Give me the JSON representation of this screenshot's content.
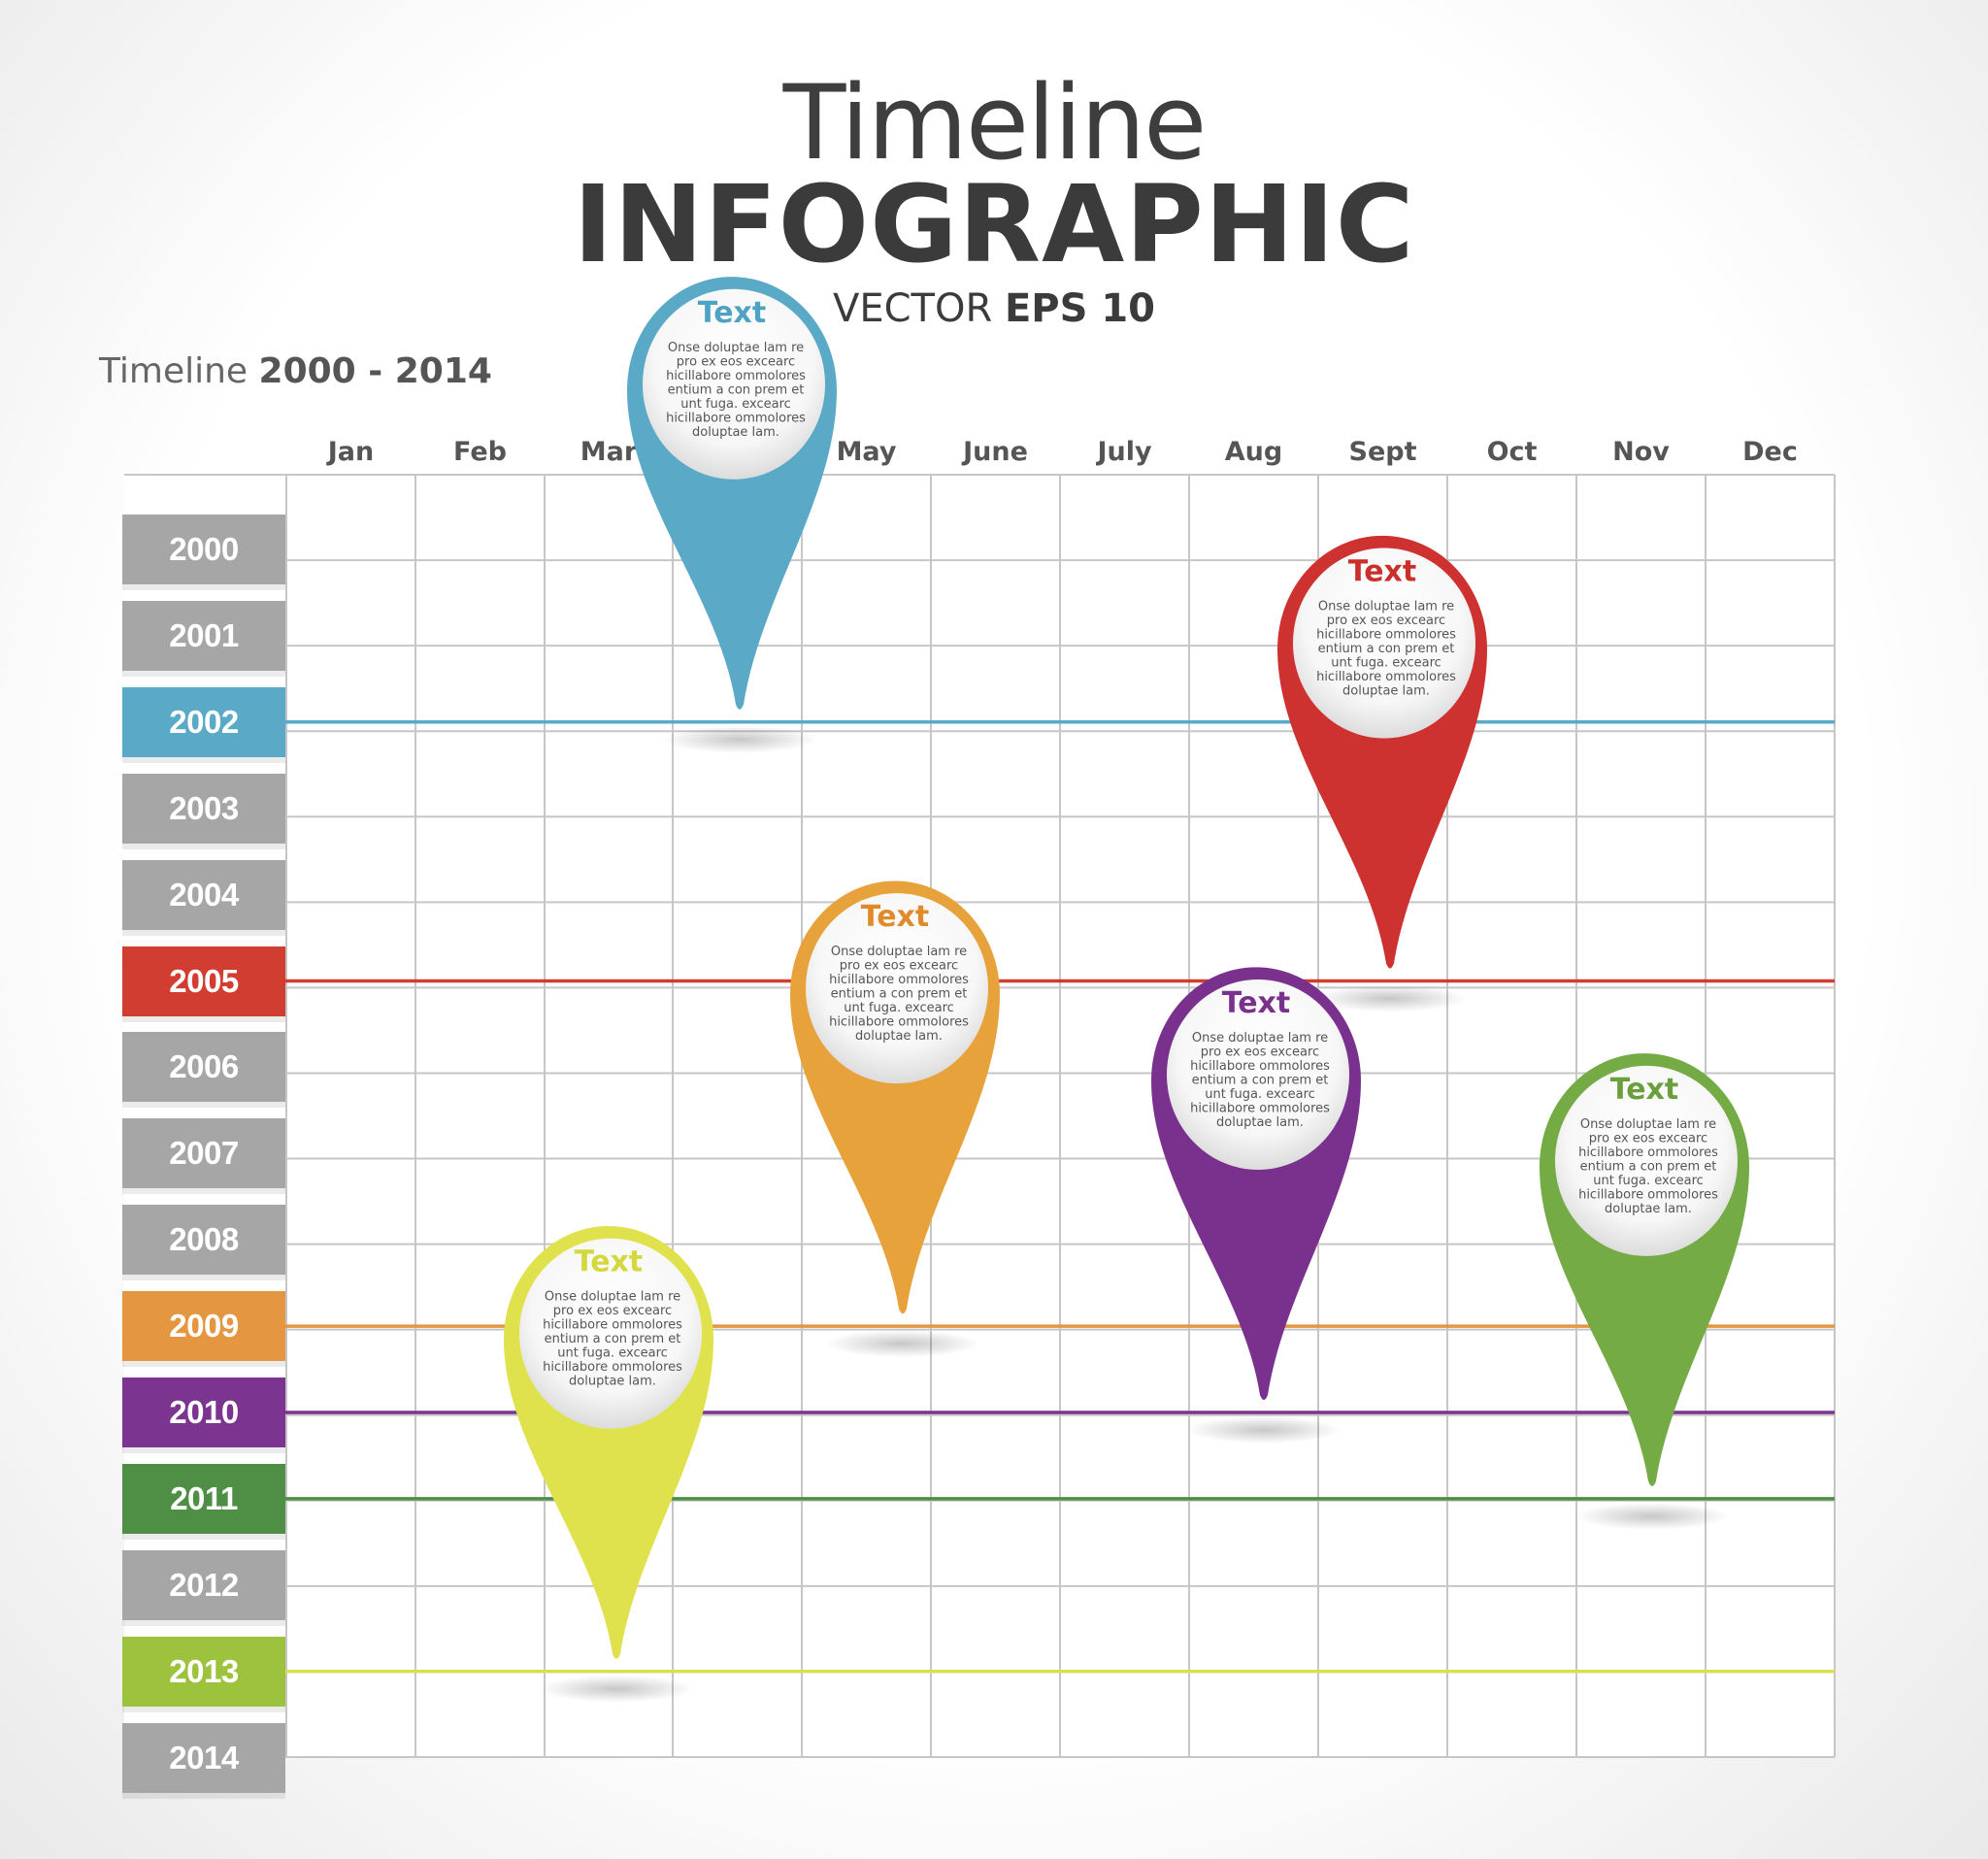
{
  "header": {
    "title_light": "Timeline",
    "title_bold": "INFOGRAPHIC",
    "subtitle_prefix": "VECTOR ",
    "subtitle_bold": "EPS 10"
  },
  "range": {
    "prefix": "Timeline ",
    "years": "2000 - 2014"
  },
  "months": [
    "Jan",
    "Feb",
    "Mar",
    "Apr",
    "May",
    "June",
    "July",
    "Aug",
    "Sept",
    "Oct",
    "Nov",
    "Dec"
  ],
  "years": [
    {
      "label": "2000",
      "color": "#a6a6a6"
    },
    {
      "label": "2001",
      "color": "#a6a6a6"
    },
    {
      "label": "2002",
      "color": "#5aa9c7"
    },
    {
      "label": "2003",
      "color": "#a6a6a6"
    },
    {
      "label": "2004",
      "color": "#a6a6a6"
    },
    {
      "label": "2005",
      "color": "#d23d32"
    },
    {
      "label": "2006",
      "color": "#a6a6a6"
    },
    {
      "label": "2007",
      "color": "#a6a6a6"
    },
    {
      "label": "2008",
      "color": "#a6a6a6"
    },
    {
      "label": "2009",
      "color": "#e59640"
    },
    {
      "label": "2010",
      "color": "#7b3590"
    },
    {
      "label": "2011",
      "color": "#4e8f45"
    },
    {
      "label": "2012",
      "color": "#a6a6a6"
    },
    {
      "label": "2013",
      "color": "#9dc23d"
    },
    {
      "label": "2014",
      "color": "#a6a6a6"
    }
  ],
  "highlight_lines": [
    {
      "year": "2002",
      "color": "#5aa9c7"
    },
    {
      "year": "2005",
      "color": "#d23d32"
    },
    {
      "year": "2009",
      "color": "#e59640"
    },
    {
      "year": "2010",
      "color": "#7b3590"
    },
    {
      "year": "2011",
      "color": "#4e8f45"
    },
    {
      "year": "2013",
      "color": "#d9e04e"
    }
  ],
  "pins": [
    {
      "name": "pin-blue",
      "year": "2002",
      "month": "Apr",
      "color": "#5aa9c7",
      "title_color": "#4ea3c4",
      "title": "Text",
      "lines": [
        "Onse doluptae lam re",
        "pro ex eos excearc",
        "hicillabore ommolores",
        "entium a con prem et",
        "unt fuga. excearc",
        "hicillabore ommolores",
        "doluptae lam."
      ]
    },
    {
      "name": "pin-red",
      "year": "2005",
      "month": "Sept",
      "color": "#cd3230",
      "title_color": "#c9302c",
      "title": "Text",
      "lines": [
        "Onse doluptae lam re",
        "pro ex eos excearc",
        "hicillabore ommolores",
        "entium a con prem et",
        "unt fuga. excearc",
        "hicillabore ommolores",
        "doluptae lam."
      ]
    },
    {
      "name": "pin-orange",
      "year": "2009",
      "month": "May",
      "color": "#e8a23c",
      "title_color": "#e08a2a",
      "title": "Text",
      "lines": [
        "Onse doluptae lam re",
        "pro ex eos excearc",
        "hicillabore ommolores",
        "entium a con prem et",
        "unt fuga. excearc",
        "hicillabore ommolores",
        "doluptae lam."
      ]
    },
    {
      "name": "pin-purple",
      "year": "2010",
      "month": "Aug",
      "color": "#7a318e",
      "title_color": "#7a318e",
      "title": "Text",
      "lines": [
        "Onse doluptae lam re",
        "pro ex eos excearc",
        "hicillabore ommolores",
        "entium a con prem et",
        "unt fuga. excearc",
        "hicillabore ommolores",
        "doluptae lam."
      ]
    },
    {
      "name": "pin-green",
      "year": "2011",
      "month": "Nov",
      "color": "#75ab44",
      "title_color": "#6a9f3c",
      "title": "Text",
      "lines": [
        "Onse doluptae lam re",
        "pro ex eos excearc",
        "hicillabore ommolores",
        "entium a con prem et",
        "unt fuga. excearc",
        "hicillabore ommolores",
        "doluptae lam."
      ]
    },
    {
      "name": "pin-yellow",
      "year": "2013",
      "month": "Mar",
      "color": "#dfe24c",
      "title_color": "#d4d83e",
      "title": "Text",
      "lines": [
        "Onse doluptae lam re",
        "pro ex eos excearc",
        "hicillabore ommolores",
        "entium a con prem et",
        "unt fuga. excearc",
        "hicillabore ommolores",
        "doluptae lam."
      ]
    }
  ]
}
